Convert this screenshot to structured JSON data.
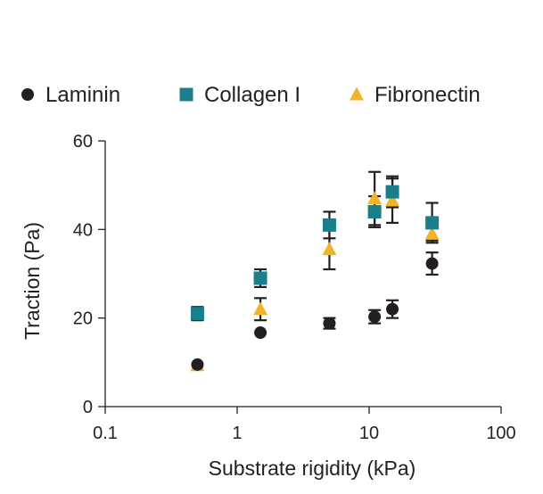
{
  "chart_data": {
    "type": "scatter",
    "title": "",
    "xlabel": "Substrate rigidity (kPa)",
    "ylabel": "Traction (Pa)",
    "xscale": "log",
    "xlim": [
      0.1,
      100
    ],
    "ylim": [
      0,
      60
    ],
    "xticks": [
      0.1,
      1,
      10,
      100
    ],
    "xtick_labels": [
      "0.1",
      "1",
      "10",
      "100"
    ],
    "yticks": [
      0,
      20,
      40,
      60
    ],
    "ytick_labels": [
      "0",
      "20",
      "40",
      "60"
    ],
    "grid": false,
    "legend_position": "top",
    "series": [
      {
        "name": "Laminin",
        "marker": "circle",
        "color": "#231f20",
        "points": [
          {
            "x": 0.5,
            "y": 9.5,
            "err": 0
          },
          {
            "x": 1.5,
            "y": 16.7,
            "err": 0
          },
          {
            "x": 5,
            "y": 18.8,
            "err": 1.2
          },
          {
            "x": 11,
            "y": 20.3,
            "err": 1.5
          },
          {
            "x": 15,
            "y": 22.0,
            "err": 2.0
          },
          {
            "x": 30,
            "y": 32.3,
            "err": 2.5
          }
        ]
      },
      {
        "name": "Collagen I",
        "marker": "square",
        "color": "#19808b",
        "points": [
          {
            "x": 0.5,
            "y": 21.0,
            "err": 1.5
          },
          {
            "x": 1.5,
            "y": 29.0,
            "err": 2.0
          },
          {
            "x": 5,
            "y": 41.0,
            "err": 3.0
          },
          {
            "x": 11,
            "y": 44.0,
            "err": 3.5
          },
          {
            "x": 15,
            "y": 48.5,
            "err": 3.5
          },
          {
            "x": 30,
            "y": 41.5,
            "err": 4.5
          }
        ]
      },
      {
        "name": "Fibronectin",
        "marker": "triangle",
        "color": "#f0b429",
        "points": [
          {
            "x": 0.5,
            "y": 9.3,
            "err": 0
          },
          {
            "x": 1.5,
            "y": 22.0,
            "err": 2.5
          },
          {
            "x": 5,
            "y": 35.5,
            "err": 4.5
          },
          {
            "x": 11,
            "y": 47.0,
            "err": 6.0
          },
          {
            "x": 15,
            "y": 46.5,
            "err": 5.0
          },
          {
            "x": 30,
            "y": 39.0,
            "err": 1.5
          }
        ]
      }
    ]
  }
}
